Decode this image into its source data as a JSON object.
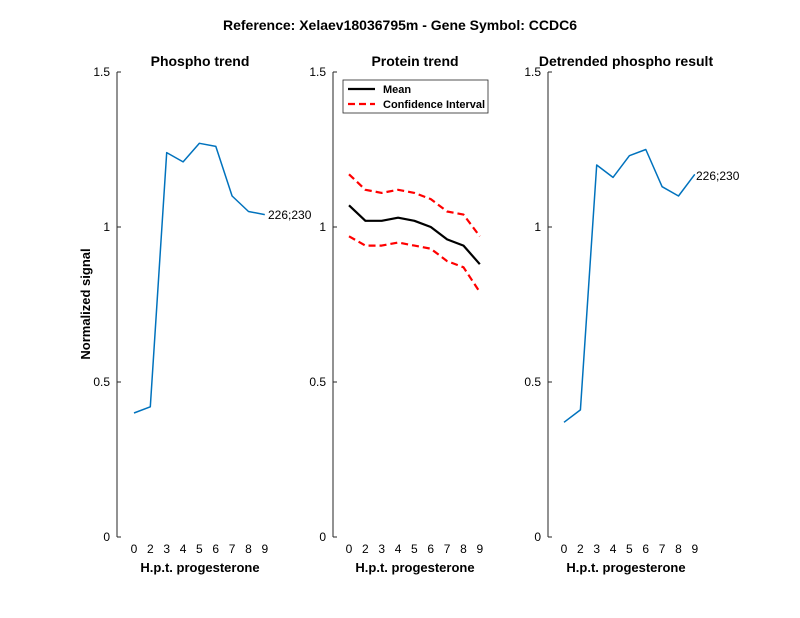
{
  "figure": {
    "suptitle": "Reference:  Xelaev18036795m - Gene Symbol:  CCDC6"
  },
  "chart_data": [
    {
      "type": "line",
      "title": "Phospho trend",
      "xlabel": "H.p.t. progesterone",
      "ylabel": "Normalized signal",
      "ylim": [
        0,
        1.5
      ],
      "yticks": [
        "0",
        "0.5",
        "1",
        "1.5"
      ],
      "categories": [
        "0",
        "2",
        "3",
        "4",
        "5",
        "6",
        "7",
        "8",
        "9"
      ],
      "series": [
        {
          "values": [
            0.4,
            0.42,
            1.24,
            1.21,
            1.27,
            1.26,
            1.1,
            1.05,
            1.04
          ],
          "color": "#0072BD",
          "style": "solid",
          "width": 1.5
        }
      ],
      "annotation": "226;230"
    },
    {
      "type": "line",
      "title": "Protein trend",
      "xlabel": "H.p.t. progesterone",
      "ylabel": "",
      "ylim": [
        0,
        1.5
      ],
      "yticks": [
        "0",
        "0.5",
        "1",
        "1.5"
      ],
      "categories": [
        "0",
        "2",
        "3",
        "4",
        "5",
        "6",
        "7",
        "8",
        "9"
      ],
      "series": [
        {
          "name": "Mean",
          "values": [
            1.07,
            1.02,
            1.02,
            1.03,
            1.02,
            1.0,
            0.96,
            0.94,
            0.88
          ],
          "color": "#000000",
          "style": "solid",
          "width": 2.2
        },
        {
          "name": "Confidence Interval",
          "values": [
            1.17,
            1.12,
            1.11,
            1.12,
            1.11,
            1.09,
            1.05,
            1.04,
            0.97
          ],
          "color": "#ff0000",
          "style": "dashed",
          "width": 2.2
        },
        {
          "name": "",
          "values": [
            0.97,
            0.94,
            0.94,
            0.95,
            0.94,
            0.93,
            0.89,
            0.87,
            0.79
          ],
          "color": "#ff0000",
          "style": "dashed",
          "width": 2.2
        }
      ],
      "legend": {
        "placement": "top-left",
        "entries": [
          "Mean",
          "Confidence Interval"
        ]
      }
    },
    {
      "type": "line",
      "title": "Detrended phospho result",
      "xlabel": "H.p.t. progesterone",
      "ylabel": "",
      "ylim": [
        0,
        1.5
      ],
      "yticks": [
        "0",
        "0.5",
        "1",
        "1.5"
      ],
      "categories": [
        "0",
        "2",
        "3",
        "4",
        "5",
        "6",
        "7",
        "8",
        "9"
      ],
      "series": [
        {
          "values": [
            0.37,
            0.41,
            1.2,
            1.16,
            1.23,
            1.25,
            1.13,
            1.1,
            1.17
          ],
          "color": "#0072BD",
          "style": "solid",
          "width": 1.5
        }
      ],
      "annotation": "226;230"
    }
  ]
}
